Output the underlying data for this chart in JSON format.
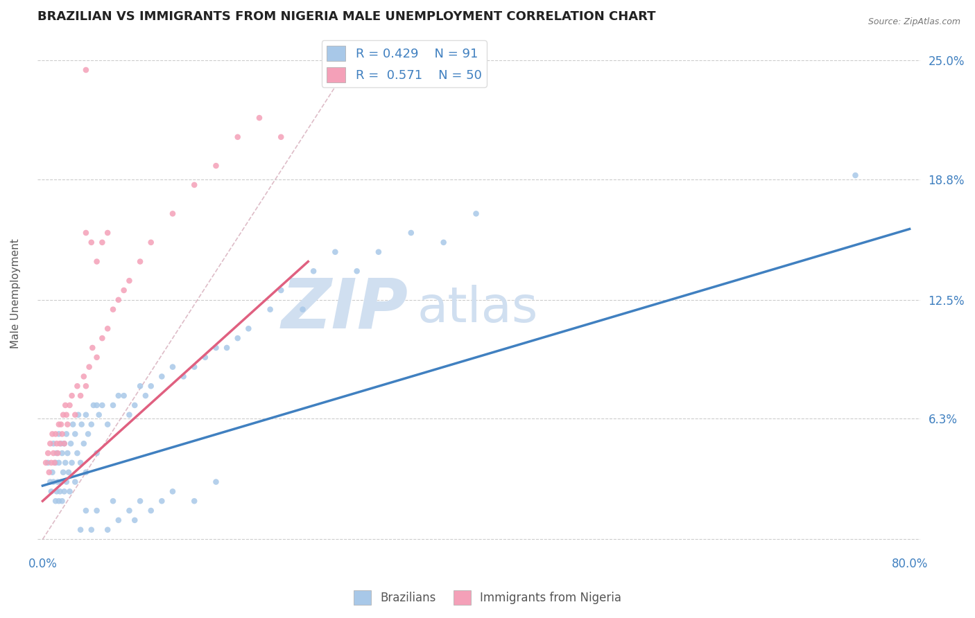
{
  "title": "BRAZILIAN VS IMMIGRANTS FROM NIGERIA MALE UNEMPLOYMENT CORRELATION CHART",
  "source": "Source: ZipAtlas.com",
  "ylabel": "Male Unemployment",
  "xmin": 0.0,
  "xmax": 0.8,
  "ymin": -0.008,
  "ymax": 0.265,
  "ytick_vals": [
    0.0,
    0.063,
    0.125,
    0.188,
    0.25
  ],
  "ytick_labels": [
    "",
    "6.3%",
    "12.5%",
    "18.8%",
    "25.0%"
  ],
  "color_blue": "#a8c8e8",
  "color_pink": "#f4a0b8",
  "color_blue_line": "#4080c0",
  "color_pink_line": "#e06080",
  "color_diag": "#d0a0b0",
  "title_fontsize": 13,
  "label_fontsize": 11,
  "tick_fontsize": 12,
  "watermark": "ZIPatlas",
  "watermark_color": "#d0dff0",
  "R_blue": 0.429,
  "N_blue": 91,
  "R_pink": 0.571,
  "N_pink": 50,
  "blue_line_x": [
    0.0,
    0.8
  ],
  "blue_line_y": [
    0.028,
    0.162
  ],
  "pink_line_x": [
    0.0,
    0.245
  ],
  "pink_line_y": [
    0.02,
    0.145
  ],
  "diag_line_x": [
    0.0,
    0.28
  ],
  "diag_line_y": [
    0.0,
    0.245
  ],
  "blue_pts_x": [
    0.005,
    0.007,
    0.008,
    0.009,
    0.01,
    0.01,
    0.012,
    0.012,
    0.013,
    0.013,
    0.014,
    0.015,
    0.015,
    0.015,
    0.016,
    0.017,
    0.017,
    0.018,
    0.018,
    0.019,
    0.02,
    0.02,
    0.021,
    0.022,
    0.022,
    0.023,
    0.024,
    0.025,
    0.026,
    0.027,
    0.028,
    0.03,
    0.03,
    0.032,
    0.033,
    0.035,
    0.036,
    0.038,
    0.04,
    0.04,
    0.042,
    0.045,
    0.047,
    0.05,
    0.05,
    0.052,
    0.055,
    0.06,
    0.065,
    0.07,
    0.075,
    0.08,
    0.085,
    0.09,
    0.095,
    0.1,
    0.11,
    0.12,
    0.13,
    0.14,
    0.15,
    0.16,
    0.17,
    0.18,
    0.19,
    0.21,
    0.22,
    0.24,
    0.25,
    0.27,
    0.29,
    0.31,
    0.34,
    0.37,
    0.4,
    0.75,
    0.035,
    0.04,
    0.045,
    0.05,
    0.06,
    0.065,
    0.07,
    0.08,
    0.085,
    0.09,
    0.1,
    0.11,
    0.12,
    0.14,
    0.16
  ],
  "blue_pts_y": [
    0.04,
    0.03,
    0.025,
    0.035,
    0.03,
    0.05,
    0.02,
    0.04,
    0.025,
    0.045,
    0.03,
    0.02,
    0.04,
    0.055,
    0.025,
    0.03,
    0.05,
    0.02,
    0.045,
    0.035,
    0.025,
    0.05,
    0.04,
    0.03,
    0.055,
    0.045,
    0.035,
    0.025,
    0.05,
    0.04,
    0.06,
    0.03,
    0.055,
    0.045,
    0.065,
    0.04,
    0.06,
    0.05,
    0.035,
    0.065,
    0.055,
    0.06,
    0.07,
    0.045,
    0.07,
    0.065,
    0.07,
    0.06,
    0.07,
    0.075,
    0.075,
    0.065,
    0.07,
    0.08,
    0.075,
    0.08,
    0.085,
    0.09,
    0.085,
    0.09,
    0.095,
    0.1,
    0.1,
    0.105,
    0.11,
    0.12,
    0.13,
    0.12,
    0.14,
    0.15,
    0.14,
    0.15,
    0.16,
    0.155,
    0.17,
    0.19,
    0.005,
    0.015,
    0.005,
    0.015,
    0.005,
    0.02,
    0.01,
    0.015,
    0.01,
    0.02,
    0.015,
    0.02,
    0.025,
    0.02,
    0.03
  ],
  "pink_pts_x": [
    0.003,
    0.005,
    0.006,
    0.007,
    0.008,
    0.009,
    0.01,
    0.011,
    0.012,
    0.013,
    0.014,
    0.015,
    0.016,
    0.017,
    0.018,
    0.019,
    0.02,
    0.021,
    0.022,
    0.023,
    0.025,
    0.027,
    0.03,
    0.032,
    0.035,
    0.038,
    0.04,
    0.043,
    0.046,
    0.05,
    0.055,
    0.06,
    0.065,
    0.07,
    0.075,
    0.08,
    0.09,
    0.1,
    0.12,
    0.14,
    0.16,
    0.18,
    0.2,
    0.22,
    0.04,
    0.045,
    0.05,
    0.055,
    0.06,
    0.04
  ],
  "pink_pts_y": [
    0.04,
    0.045,
    0.035,
    0.05,
    0.04,
    0.055,
    0.045,
    0.04,
    0.055,
    0.05,
    0.045,
    0.06,
    0.05,
    0.06,
    0.055,
    0.065,
    0.05,
    0.07,
    0.065,
    0.06,
    0.07,
    0.075,
    0.065,
    0.08,
    0.075,
    0.085,
    0.08,
    0.09,
    0.1,
    0.095,
    0.105,
    0.11,
    0.12,
    0.125,
    0.13,
    0.135,
    0.145,
    0.155,
    0.17,
    0.185,
    0.195,
    0.21,
    0.22,
    0.21,
    0.16,
    0.155,
    0.145,
    0.155,
    0.16,
    0.245
  ]
}
